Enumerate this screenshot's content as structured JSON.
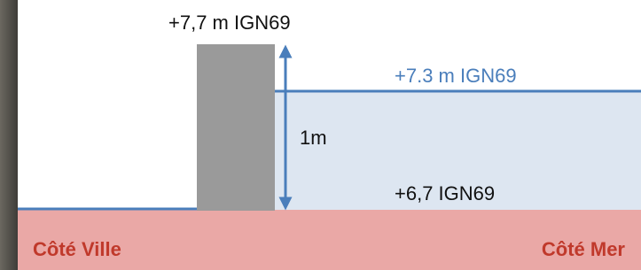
{
  "labels": {
    "wall_top": "+7,7 m IGN69",
    "water_level": "+7.3 m IGN69",
    "height": "1m",
    "ground_level": "+6,7 IGN69",
    "left_side": "Côté Ville",
    "right_side": "Côté Mer"
  }
}
